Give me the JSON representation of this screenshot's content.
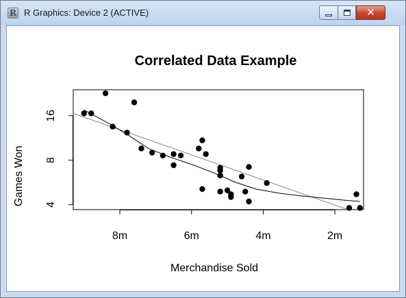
{
  "window": {
    "title": "R Graphics: Device 2 (ACTIVE)",
    "icon_name": "r-logo-icon",
    "buttons": [
      "minimize",
      "maximize",
      "close"
    ]
  },
  "chart_data": {
    "type": "scatter",
    "title": "Correlated Data Example",
    "xlabel": "Merchandise Sold",
    "ylabel": "Games Won",
    "x_reversed": true,
    "xlim": [
      9.3,
      1.2
    ],
    "ylim": [
      3.7,
      24
    ],
    "y_log_scale": true,
    "x_ticks": [
      8,
      6,
      4,
      2
    ],
    "x_tick_labels": [
      "8m",
      "6m",
      "4m",
      "2m"
    ],
    "y_ticks": [
      4,
      8,
      16
    ],
    "y_tick_labels": [
      "4",
      "8",
      "16"
    ],
    "grid": false,
    "legend": "none",
    "point_color": "#000000",
    "points": [
      {
        "x": 9.0,
        "y": 16.6
      },
      {
        "x": 8.8,
        "y": 16.6
      },
      {
        "x": 8.4,
        "y": 22.7
      },
      {
        "x": 8.2,
        "y": 13.5
      },
      {
        "x": 7.6,
        "y": 19.7
      },
      {
        "x": 7.8,
        "y": 12.3
      },
      {
        "x": 7.4,
        "y": 9.6
      },
      {
        "x": 7.1,
        "y": 9.0
      },
      {
        "x": 6.8,
        "y": 8.6
      },
      {
        "x": 6.5,
        "y": 7.4
      },
      {
        "x": 6.5,
        "y": 8.8
      },
      {
        "x": 6.3,
        "y": 8.6
      },
      {
        "x": 5.8,
        "y": 9.6
      },
      {
        "x": 5.7,
        "y": 10.9
      },
      {
        "x": 5.6,
        "y": 8.8
      },
      {
        "x": 5.7,
        "y": 5.1
      },
      {
        "x": 5.2,
        "y": 6.3
      },
      {
        "x": 5.2,
        "y": 6.8
      },
      {
        "x": 5.2,
        "y": 7.1
      },
      {
        "x": 5.2,
        "y": 4.9
      },
      {
        "x": 5.0,
        "y": 5.0
      },
      {
        "x": 4.9,
        "y": 4.7
      },
      {
        "x": 4.9,
        "y": 4.5
      },
      {
        "x": 4.6,
        "y": 6.2
      },
      {
        "x": 4.5,
        "y": 4.9
      },
      {
        "x": 4.4,
        "y": 7.2
      },
      {
        "x": 4.4,
        "y": 4.2
      },
      {
        "x": 3.9,
        "y": 5.6
      },
      {
        "x": 1.6,
        "y": 3.8
      },
      {
        "x": 1.4,
        "y": 4.7
      },
      {
        "x": 1.3,
        "y": 3.8
      }
    ],
    "regression_line": {
      "x": [
        9.3,
        1.5
      ],
      "y": [
        16.6,
        3.6
      ],
      "color": "#808080"
    },
    "smooth_line": {
      "color": "#000000",
      "x": [
        9.0,
        8.4,
        7.8,
        7.2,
        6.6,
        6.0,
        5.4,
        4.8,
        4.2,
        3.6,
        3.0,
        2.4,
        1.8,
        1.3
      ],
      "y": [
        17.5,
        14.6,
        12.0,
        9.6,
        8.4,
        7.5,
        6.6,
        5.7,
        5.1,
        4.8,
        4.6,
        4.45,
        4.3,
        4.2
      ]
    }
  }
}
